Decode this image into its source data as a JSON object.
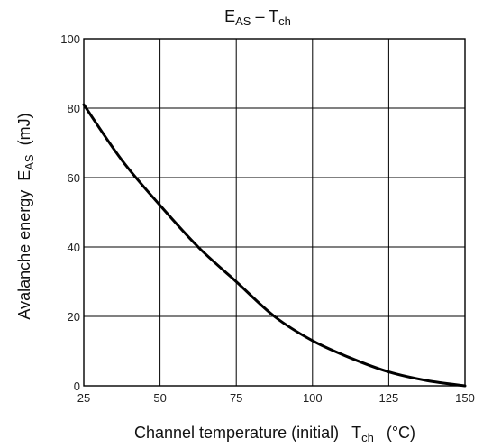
{
  "chart_data": {
    "type": "line",
    "title": {
      "main_left": "E",
      "main_left_sub": "AS",
      "separator": " – ",
      "main_right": "T",
      "main_right_sub": "ch"
    },
    "xlabel": {
      "text": "Channel temperature (initial)",
      "symbol": "T",
      "symbol_sub": "ch",
      "unit": "(°C)"
    },
    "ylabel": {
      "text": "Avalanche energy",
      "symbol": "E",
      "symbol_sub": "AS",
      "unit": "(mJ)"
    },
    "xlim": [
      25,
      150
    ],
    "ylim": [
      0,
      100
    ],
    "x_ticks": [
      25,
      50,
      75,
      100,
      125,
      150
    ],
    "y_ticks": [
      0,
      20,
      40,
      60,
      80,
      100
    ],
    "grid": true,
    "series": [
      {
        "points": [
          [
            25,
            81
          ],
          [
            37.5,
            65
          ],
          [
            50,
            52
          ],
          [
            62.5,
            40
          ],
          [
            75,
            30
          ],
          [
            87.5,
            20
          ],
          [
            100,
            13
          ],
          [
            112.5,
            8
          ],
          [
            125,
            4
          ],
          [
            137.5,
            1.5
          ],
          [
            150,
            0
          ]
        ]
      }
    ],
    "colors": {
      "line": "#000000",
      "grid": "#000000",
      "frame": "#000000"
    }
  }
}
